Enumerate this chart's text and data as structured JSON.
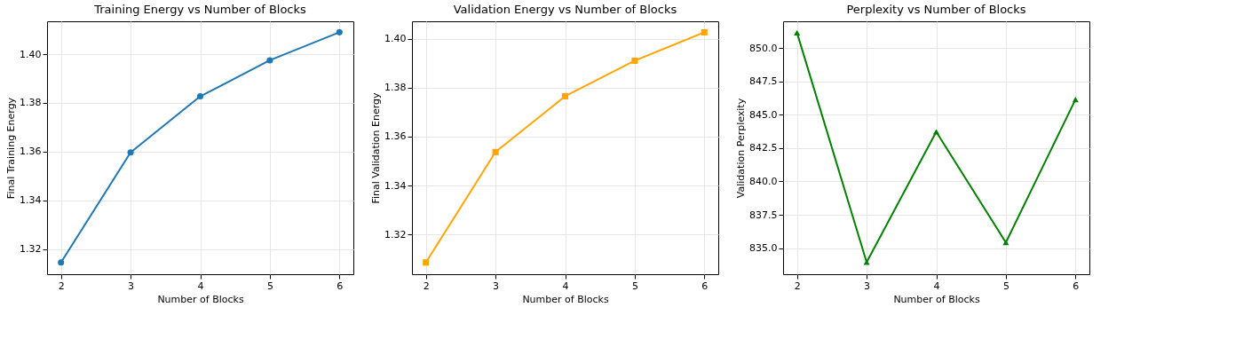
{
  "chart_data": [
    {
      "type": "line",
      "title": "Training Energy vs Number of Blocks",
      "xlabel": "Number of Blocks",
      "ylabel": "Final Training Energy",
      "x": [
        2,
        3,
        4,
        5,
        6
      ],
      "xlim": [
        1.8,
        6.2
      ],
      "xticks": [
        2,
        3,
        4,
        5,
        6
      ],
      "ylim": [
        1.3097,
        1.4135
      ],
      "yticks": [
        1.32,
        1.34,
        1.36,
        1.38,
        {
          "value": 1.4,
          "label": "1.40"
        }
      ],
      "grid": true,
      "marker": "circle",
      "line_style": "solid",
      "series": [
        {
          "color": "#1f77b4",
          "values": [
            1.3145,
            1.3597,
            1.3827,
            1.3975,
            1.409
          ]
        }
      ]
    },
    {
      "type": "line",
      "title": "Validation Energy vs Number of Blocks",
      "xlabel": "Number of Blocks",
      "ylabel": "Final Validation Energy",
      "x": [
        2,
        3,
        4,
        5,
        6
      ],
      "xlim": [
        1.8,
        6.2
      ],
      "xticks": [
        2,
        3,
        4,
        5,
        6
      ],
      "ylim": [
        1.3038,
        1.4071
      ],
      "yticks": [
        1.32,
        1.34,
        1.36,
        1.38,
        {
          "value": 1.4,
          "label": "1.40"
        }
      ],
      "grid": true,
      "marker": "square",
      "line_style": "solid",
      "series": [
        {
          "color": "#ffa500",
          "values": [
            1.3086,
            1.3537,
            1.3765,
            1.391,
            1.4026
          ]
        }
      ]
    },
    {
      "type": "line",
      "title": "Perplexity vs Number of Blocks",
      "xlabel": "Number of Blocks",
      "ylabel": "Validation Perplexity",
      "x": [
        2,
        3,
        4,
        5,
        6
      ],
      "xlim": [
        1.8,
        6.2
      ],
      "xticks": [
        2,
        3,
        4,
        5,
        6
      ],
      "ylim": [
        833.04,
        852.02
      ],
      "yticks": [
        {
          "value": 835,
          "label": "835.0"
        },
        {
          "value": 837.5,
          "label": "837.5"
        },
        {
          "value": 840,
          "label": "840.0"
        },
        {
          "value": 842.5,
          "label": "842.5"
        },
        {
          "value": 845,
          "label": "845.0"
        },
        {
          "value": 847.5,
          "label": "847.5"
        },
        {
          "value": 850,
          "label": "850.0"
        }
      ],
      "grid": true,
      "marker": "triangle",
      "line_style": "solid",
      "series": [
        {
          "color": "#008000",
          "values": [
            851.16,
            833.94,
            843.73,
            835.42,
            846.15
          ]
        }
      ]
    }
  ]
}
